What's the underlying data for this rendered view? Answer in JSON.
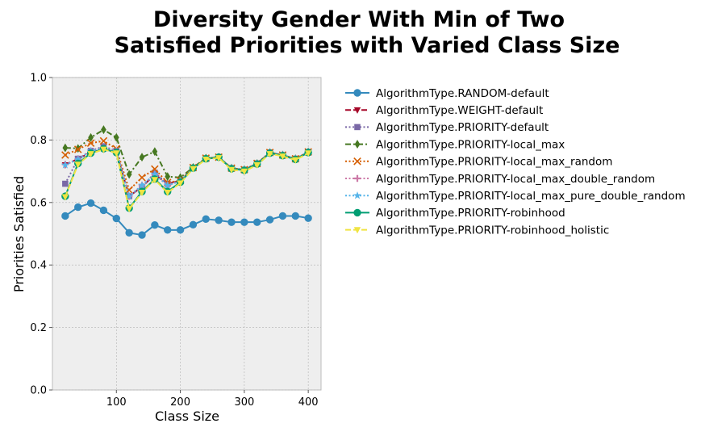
{
  "chart_data": {
    "type": "line",
    "title_lines": [
      "Diversity Gender With Min of Two",
      "Satisfied Priorities with Varied Class Size"
    ],
    "xlabel": "Class Size",
    "ylabel": "Priorities Satisfied",
    "xlim": [
      0,
      420
    ],
    "ylim": [
      0,
      1.0
    ],
    "xticks": [
      100,
      200,
      300,
      400
    ],
    "yticks": [
      0.0,
      0.2,
      0.4,
      0.6,
      0.8,
      1.0
    ],
    "ytick_labels": [
      "0.0",
      "0.2",
      "0.4",
      "0.6",
      "0.8",
      "1.0"
    ],
    "grid": true,
    "legend_position": "outside-right",
    "x": [
      20,
      40,
      60,
      80,
      100,
      120,
      140,
      160,
      180,
      200,
      220,
      240,
      260,
      280,
      300,
      320,
      340,
      360,
      380,
      400
    ],
    "series": [
      {
        "name": "AlgorithmType.RANDOM-default",
        "color": "#348abd",
        "marker": "circle",
        "dash": "solid",
        "values": [
          0.557,
          0.585,
          0.598,
          0.575,
          0.549,
          0.503,
          0.496,
          0.528,
          0.512,
          0.512,
          0.529,
          0.547,
          0.543,
          0.537,
          0.537,
          0.537,
          0.545,
          0.557,
          0.557,
          0.55
        ]
      },
      {
        "name": "AlgorithmType.WEIGHT-default",
        "color": "#a60628",
        "marker": "triangle-down",
        "dash": "dashed",
        "values": [
          0.72,
          0.74,
          0.76,
          0.77,
          0.76,
          0.62,
          0.65,
          0.69,
          0.66,
          0.67,
          0.71,
          0.74,
          0.745,
          0.71,
          0.705,
          0.725,
          0.76,
          0.75,
          0.74,
          0.76
        ]
      },
      {
        "name": "AlgorithmType.PRIORITY-default",
        "color": "#7a68a6",
        "marker": "square",
        "dash": "dotted",
        "values": [
          0.66,
          0.74,
          0.765,
          0.78,
          0.765,
          0.62,
          0.65,
          0.695,
          0.66,
          0.67,
          0.71,
          0.74,
          0.745,
          0.71,
          0.705,
          0.725,
          0.76,
          0.75,
          0.74,
          0.76
        ]
      },
      {
        "name": "AlgorithmType.PRIORITY-local_max",
        "color": "#467821",
        "marker": "diamond",
        "dash": "dashdot",
        "values": [
          0.775,
          0.773,
          0.808,
          0.833,
          0.808,
          0.69,
          0.745,
          0.763,
          0.683,
          0.68,
          0.712,
          0.742,
          0.745,
          0.71,
          0.705,
          0.725,
          0.76,
          0.752,
          0.74,
          0.762
        ]
      },
      {
        "name": "AlgorithmType.PRIORITY-local_max_random",
        "color": "#d55e00",
        "marker": "x",
        "dash": "dotted",
        "values": [
          0.752,
          0.77,
          0.79,
          0.797,
          0.772,
          0.64,
          0.68,
          0.707,
          0.664,
          0.67,
          0.712,
          0.742,
          0.745,
          0.71,
          0.705,
          0.725,
          0.76,
          0.752,
          0.74,
          0.762
        ]
      },
      {
        "name": "AlgorithmType.PRIORITY-local_max_double_random",
        "color": "#cc79a7",
        "marker": "plus",
        "dash": "dotted",
        "values": [
          0.722,
          0.74,
          0.765,
          0.775,
          0.765,
          0.62,
          0.655,
          0.69,
          0.655,
          0.67,
          0.71,
          0.74,
          0.745,
          0.71,
          0.705,
          0.725,
          0.76,
          0.752,
          0.74,
          0.762
        ]
      },
      {
        "name": "AlgorithmType.PRIORITY-local_max_pure_double_random",
        "color": "#56b4e9",
        "marker": "star",
        "dash": "dotted",
        "values": [
          0.72,
          0.738,
          0.765,
          0.773,
          0.763,
          0.62,
          0.655,
          0.69,
          0.655,
          0.668,
          0.71,
          0.74,
          0.745,
          0.71,
          0.705,
          0.725,
          0.76,
          0.752,
          0.74,
          0.762
        ]
      },
      {
        "name": "AlgorithmType.PRIORITY-robinhood",
        "color": "#009e73",
        "marker": "circle",
        "dash": "solid",
        "values": [
          0.62,
          0.725,
          0.758,
          0.772,
          0.76,
          0.582,
          0.635,
          0.675,
          0.635,
          0.665,
          0.71,
          0.74,
          0.745,
          0.708,
          0.703,
          0.723,
          0.758,
          0.75,
          0.738,
          0.76
        ]
      },
      {
        "name": "AlgorithmType.PRIORITY-robinhood_holistic",
        "color": "#f0e442",
        "marker": "triangle-down",
        "dash": "dashed",
        "values": [
          0.618,
          0.722,
          0.756,
          0.77,
          0.758,
          0.58,
          0.632,
          0.673,
          0.632,
          0.662,
          0.708,
          0.738,
          0.743,
          0.705,
          0.7,
          0.72,
          0.756,
          0.748,
          0.736,
          0.758
        ]
      }
    ]
  }
}
